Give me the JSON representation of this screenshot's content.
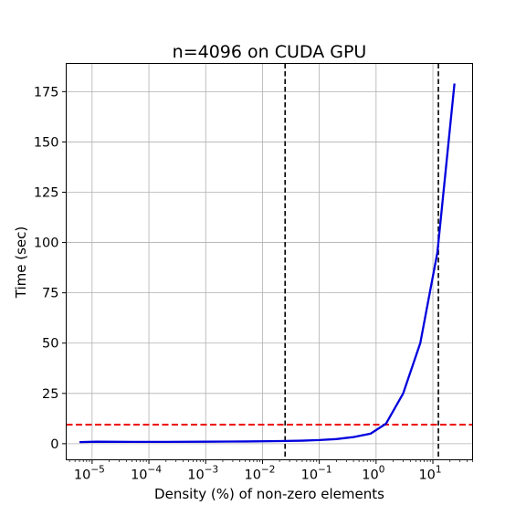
{
  "chart_data": {
    "type": "line",
    "title": "n=4096 on CUDA GPU",
    "xlabel": "Density (%) of non-zero elements",
    "ylabel": "Time (sec)",
    "xscale": "log",
    "xlim": [
      3.5e-06,
      50
    ],
    "ylim": [
      -8,
      189
    ],
    "grid": true,
    "x_ticks": [
      {
        "base": "10",
        "exp": "−5",
        "value": 1e-05
      },
      {
        "base": "10",
        "exp": "−4",
        "value": 0.0001
      },
      {
        "base": "10",
        "exp": "−3",
        "value": 0.001
      },
      {
        "base": "10",
        "exp": "−2",
        "value": 0.01
      },
      {
        "base": "10",
        "exp": "−1",
        "value": 0.1
      },
      {
        "base": "10",
        "exp": "0",
        "value": 1
      },
      {
        "base": "10",
        "exp": "1",
        "value": 10
      }
    ],
    "y_ticks": [
      "0",
      "25",
      "50",
      "75",
      "100",
      "125",
      "150",
      "175"
    ],
    "series": [
      {
        "color": "#0000dd",
        "x": [
          6e-06,
          1.2e-05,
          5e-05,
          0.0002,
          0.001,
          0.005,
          0.02,
          0.05,
          0.1,
          0.2,
          0.4,
          0.8,
          1.5,
          3,
          6,
          12,
          24
        ],
        "y": [
          0.8,
          1.0,
          0.9,
          0.9,
          1.0,
          1.1,
          1.3,
          1.5,
          1.8,
          2.3,
          3.3,
          5.0,
          10,
          25,
          50,
          95,
          179
        ]
      }
    ],
    "reference_lines": [
      {
        "orientation": "vertical",
        "value": 0.025,
        "color": "#000000",
        "style": "dashed"
      },
      {
        "orientation": "vertical",
        "value": 12.5,
        "color": "#000000",
        "style": "dashed"
      },
      {
        "orientation": "horizontal",
        "value": 9.5,
        "color": "#ee0000",
        "style": "dashed"
      }
    ]
  }
}
